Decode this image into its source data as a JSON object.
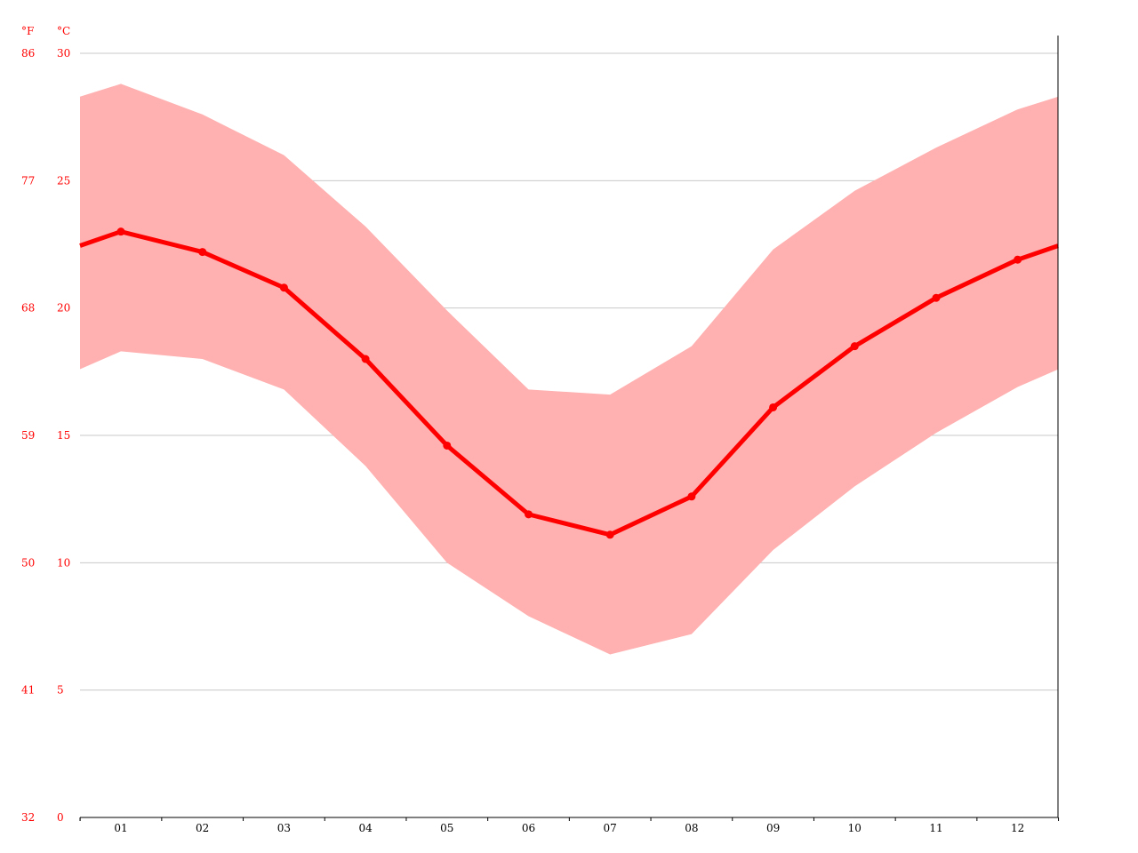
{
  "chart_data": {
    "type": "line",
    "title": "",
    "xlabel": "",
    "ylabel": "",
    "units": {
      "fahrenheit": "°F",
      "celsius": "°C"
    },
    "categories": [
      "01",
      "02",
      "03",
      "04",
      "05",
      "06",
      "07",
      "08",
      "09",
      "10",
      "11",
      "12"
    ],
    "y_ticks_c": [
      "0",
      "5",
      "10",
      "15",
      "20",
      "25",
      "30"
    ],
    "y_ticks_f": [
      "32",
      "41",
      "50",
      "59",
      "68",
      "77",
      "86"
    ],
    "ylim": [
      0,
      30
    ],
    "grid": true,
    "colors": {
      "line": "#ff0000",
      "band": "#ffb0b0",
      "grid": "#c8c8c8",
      "axis": "#000000",
      "label": "#ff0000"
    },
    "series": [
      {
        "values": [
          23.0,
          22.2,
          20.8,
          18.0,
          14.6,
          11.9,
          11.1,
          12.6,
          16.1,
          18.5,
          20.4,
          21.9
        ]
      },
      {
        "values": [
          28.8,
          27.6,
          26.0,
          23.2,
          19.9,
          16.8,
          16.6,
          18.5,
          22.3,
          24.6,
          26.3,
          27.8
        ]
      },
      {
        "values": [
          18.3,
          18.0,
          16.8,
          13.8,
          10.0,
          7.9,
          6.4,
          7.2,
          10.5,
          13.0,
          15.1,
          16.9
        ]
      }
    ]
  }
}
